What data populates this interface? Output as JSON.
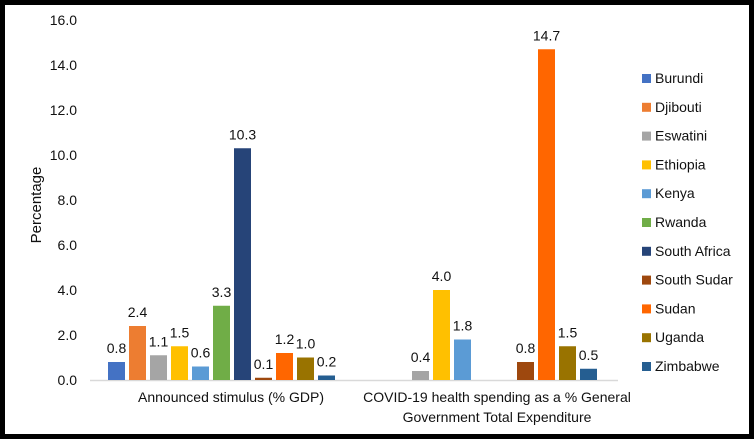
{
  "chart_data": {
    "type": "bar",
    "title": "",
    "xlabel": "",
    "ylabel": "Percentage",
    "ylim": [
      0,
      16
    ],
    "yticks": [
      "0.0",
      "2.0",
      "4.0",
      "6.0",
      "8.0",
      "10.0",
      "12.0",
      "14.0",
      "16.0"
    ],
    "grid": false,
    "legend_position": "right",
    "categories": [
      [
        "Announced stimulus (% GDP)"
      ],
      [
        "COVID-19 health spending as a % General",
        "Government Total Expenditure"
      ]
    ],
    "series": [
      {
        "name": "Burundi",
        "color": "#4472C4",
        "values": [
          0.8,
          null
        ]
      },
      {
        "name": "Djibouti",
        "color": "#ED7D31",
        "values": [
          2.4,
          null
        ]
      },
      {
        "name": "Eswatini",
        "color": "#A5A5A5",
        "values": [
          1.1,
          0.4
        ]
      },
      {
        "name": "Ethiopia",
        "color": "#FFC000",
        "values": [
          1.5,
          4.0
        ]
      },
      {
        "name": "Kenya",
        "color": "#5B9BD5",
        "values": [
          0.6,
          1.8
        ]
      },
      {
        "name": "Rwanda",
        "color": "#70AD47",
        "values": [
          3.3,
          null
        ]
      },
      {
        "name": "South Africa",
        "color": "#264478",
        "values": [
          10.3,
          null
        ]
      },
      {
        "name": "South Sudar",
        "color": "#9E480E",
        "values": [
          0.1,
          0.8
        ]
      },
      {
        "name": "Sudan",
        "color": "#FF6600",
        "values": [
          1.2,
          14.7
        ]
      },
      {
        "name": "Uganda",
        "color": "#997300",
        "values": [
          1.0,
          1.5
        ]
      },
      {
        "name": "Zimbabwe",
        "color": "#255E91",
        "values": [
          0.2,
          0.5
        ]
      }
    ]
  }
}
